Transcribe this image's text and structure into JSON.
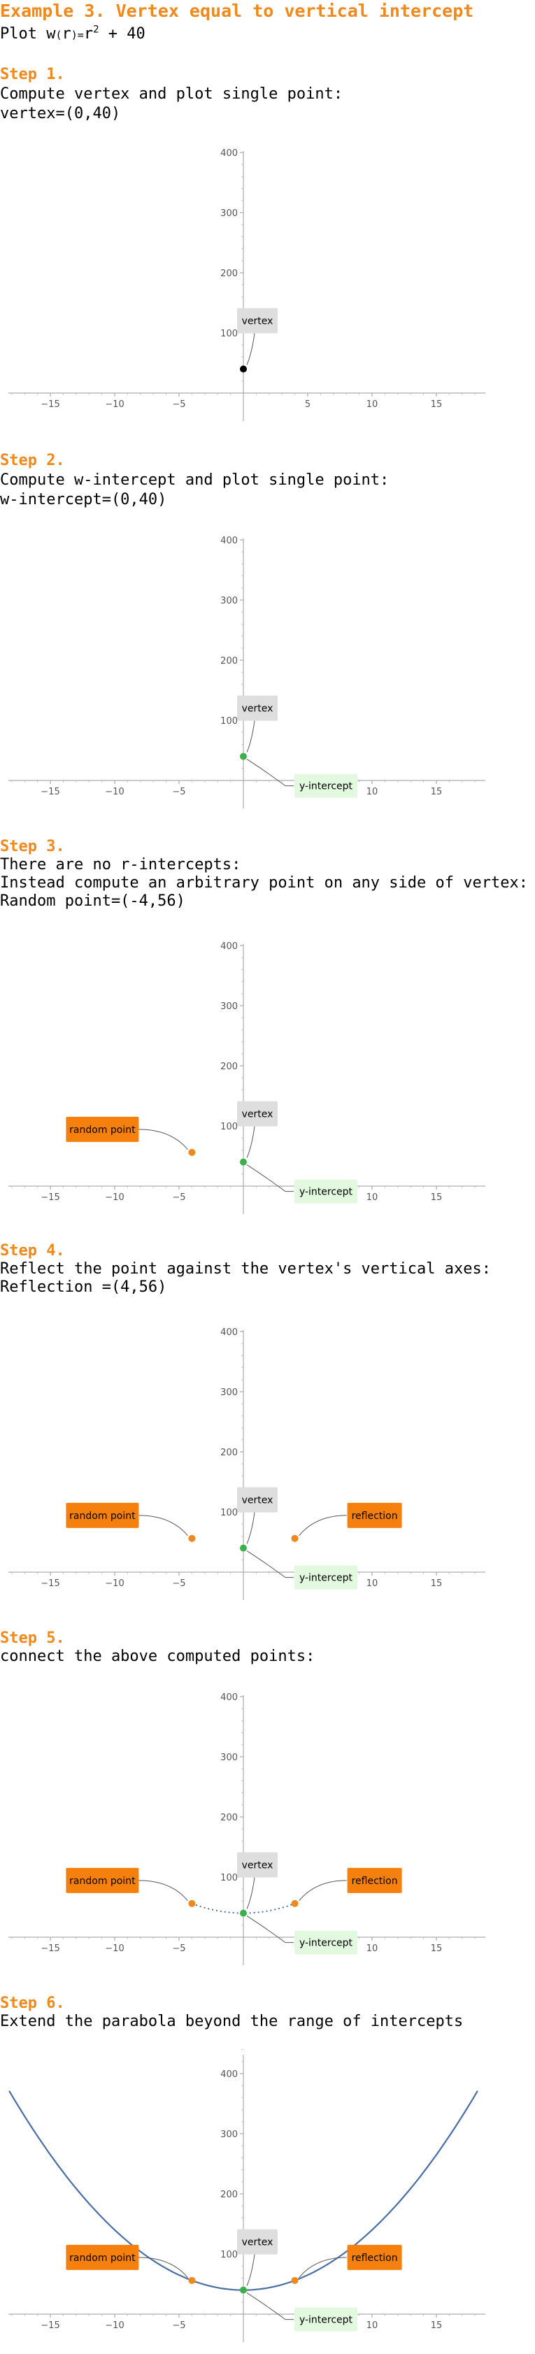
{
  "title": "Example 3. Vertex equal to vertical intercept",
  "intro": {
    "prefix": "Plot ",
    "func": "w",
    "var": "r",
    "eq": "=",
    "base": "r",
    "exp": "2",
    "rest": "+ 40"
  },
  "steps": [
    {
      "heading": "Step 1.",
      "lines": [
        "Compute vertex and plot single point:",
        "vertex=(0,40)"
      ]
    },
    {
      "heading": "Step 2.",
      "lines": [
        "Compute w-intercept and plot single point:",
        "w-intercept=(0,40)"
      ]
    },
    {
      "heading": "Step 3.",
      "lines": [
        "There are no r-intercepts:",
        "Instead compute an arbitrary point on any side of vertex:",
        "Random point=(-4,56)"
      ]
    },
    {
      "heading": "Step 4.",
      "lines": [
        "Reflect the point against the vertex's vertical axes:",
        "Reflection =(4,56)"
      ]
    },
    {
      "heading": "Step 5.",
      "lines": [
        "connect the above computed points:"
      ]
    },
    {
      "heading": "Step 6.",
      "lines": [
        "Extend the parabola beyond the range of intercepts"
      ]
    }
  ],
  "labels": {
    "vertex": "vertex",
    "y_intercept": "y-intercept",
    "random_point": "random point",
    "reflection": "reflection"
  },
  "colors": {
    "accent": "#f0891c",
    "green_point": "#3cb04a",
    "orange_point": "#f0891c",
    "curve": "#4a6fa5",
    "vertex_label_bg": "#dedede",
    "intercept_label_bg": "#e2f8df",
    "orange_label_bg": "#f5800e"
  },
  "chart_data": {
    "type": "scatter",
    "function": "w(r) = r^2 + 40",
    "xlim": [
      -19,
      19
    ],
    "ylim": [
      0,
      450
    ],
    "xticks": [
      -15,
      -10,
      -5,
      5,
      10,
      15
    ],
    "yticks": [
      100,
      200,
      300,
      400
    ],
    "points": {
      "vertex": [
        0,
        40
      ],
      "intercept": [
        0,
        40
      ],
      "random_point": [
        -4,
        56
      ],
      "reflection": [
        4,
        56
      ]
    },
    "connect_range": [
      -4,
      4
    ],
    "extend_range": [
      -18.2,
      18.2
    ]
  }
}
